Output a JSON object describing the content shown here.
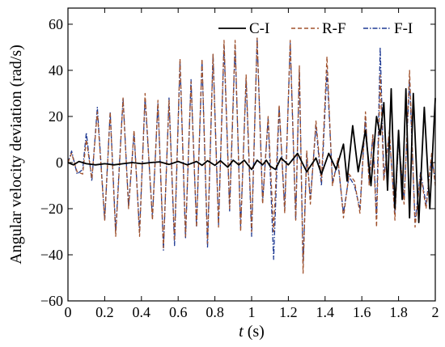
{
  "chart_data": {
    "type": "line",
    "xlabel_var": "t",
    "xlabel_unit": " (s)",
    "ylabel": "Angular velocity deviation (rad/s)",
    "xlim": [
      0,
      2
    ],
    "ylim": [
      -60,
      67
    ],
    "xticks": [
      0,
      0.2,
      0.4,
      0.6,
      0.8,
      1,
      1.2,
      1.4,
      1.6,
      1.8,
      2
    ],
    "xtick_labels": [
      "0",
      "0.2",
      "0.4",
      "0.6",
      "0.8",
      "1",
      "1.2",
      "1.4",
      "1.6",
      "1.8",
      "2"
    ],
    "yticks": [
      -60,
      -40,
      -20,
      0,
      20,
      40,
      60
    ],
    "ytick_labels": [
      "−60",
      "−40",
      "−20",
      "0",
      "20",
      "40",
      "60"
    ],
    "grid": false,
    "legend_position": "top-right",
    "series": [
      {
        "name": "C-I",
        "color": "#000000",
        "dash": "none",
        "points": [
          [
            0,
            0
          ],
          [
            0.03,
            -1
          ],
          [
            0.06,
            0.5
          ],
          [
            0.1,
            -0.5
          ],
          [
            0.15,
            -1
          ],
          [
            0.2,
            -0.5
          ],
          [
            0.25,
            -1
          ],
          [
            0.3,
            -0.5
          ],
          [
            0.35,
            0
          ],
          [
            0.4,
            -0.5
          ],
          [
            0.45,
            0
          ],
          [
            0.5,
            0.3
          ],
          [
            0.55,
            -0.8
          ],
          [
            0.6,
            0.5
          ],
          [
            0.65,
            -1
          ],
          [
            0.7,
            0.5
          ],
          [
            0.73,
            -1.2
          ],
          [
            0.76,
            0.8
          ],
          [
            0.8,
            -1.2
          ],
          [
            0.83,
            0.8
          ],
          [
            0.87,
            -2
          ],
          [
            0.9,
            1
          ],
          [
            0.93,
            -1
          ],
          [
            0.96,
            1
          ],
          [
            1.0,
            -3
          ],
          [
            1.03,
            1
          ],
          [
            1.06,
            -1
          ],
          [
            1.08,
            1
          ],
          [
            1.1,
            -1.5
          ],
          [
            1.13,
            -3
          ],
          [
            1.16,
            2
          ],
          [
            1.2,
            -1
          ],
          [
            1.25,
            4
          ],
          [
            1.3,
            -4
          ],
          [
            1.35,
            2
          ],
          [
            1.38,
            -5
          ],
          [
            1.42,
            4
          ],
          [
            1.46,
            -3
          ],
          [
            1.5,
            8
          ],
          [
            1.52,
            -8
          ],
          [
            1.55,
            16
          ],
          [
            1.58,
            -4
          ],
          [
            1.62,
            14
          ],
          [
            1.65,
            -10
          ],
          [
            1.68,
            20
          ],
          [
            1.7,
            12
          ],
          [
            1.72,
            26
          ],
          [
            1.74,
            -12
          ],
          [
            1.76,
            32
          ],
          [
            1.78,
            -20
          ],
          [
            1.8,
            14
          ],
          [
            1.82,
            -16
          ],
          [
            1.84,
            32
          ],
          [
            1.86,
            -24
          ],
          [
            1.88,
            30
          ],
          [
            1.91,
            -26
          ],
          [
            1.94,
            24
          ],
          [
            1.97,
            -20
          ],
          [
            2.0,
            28
          ]
        ]
      },
      {
        "name": "R-F",
        "color": "#a0522d",
        "dash": "5,3",
        "points": [
          [
            0,
            0
          ],
          [
            0.02,
            4
          ],
          [
            0.05,
            -4
          ],
          [
            0.08,
            -5
          ],
          [
            0.1,
            10
          ],
          [
            0.13,
            -7
          ],
          [
            0.16,
            22
          ],
          [
            0.2,
            -25
          ],
          [
            0.23,
            22
          ],
          [
            0.26,
            -32
          ],
          [
            0.3,
            28
          ],
          [
            0.33,
            -20
          ],
          [
            0.36,
            14
          ],
          [
            0.39,
            -32
          ],
          [
            0.42,
            30
          ],
          [
            0.46,
            -25
          ],
          [
            0.49,
            27
          ],
          [
            0.52,
            -37
          ],
          [
            0.55,
            27
          ],
          [
            0.58,
            -34
          ],
          [
            0.61,
            45
          ],
          [
            0.64,
            -32
          ],
          [
            0.67,
            35
          ],
          [
            0.7,
            -28
          ],
          [
            0.73,
            45
          ],
          [
            0.76,
            -35
          ],
          [
            0.79,
            47
          ],
          [
            0.82,
            -28
          ],
          [
            0.85,
            53
          ],
          [
            0.88,
            -20
          ],
          [
            0.91,
            53
          ],
          [
            0.94,
            -30
          ],
          [
            0.97,
            38
          ],
          [
            1.0,
            -30
          ],
          [
            1.03,
            54
          ],
          [
            1.06,
            -18
          ],
          [
            1.09,
            20
          ],
          [
            1.12,
            -30
          ],
          [
            1.15,
            25
          ],
          [
            1.18,
            -22
          ],
          [
            1.21,
            53
          ],
          [
            1.24,
            -25
          ],
          [
            1.26,
            42
          ],
          [
            1.28,
            -48
          ],
          [
            1.3,
            5
          ],
          [
            1.32,
            -18
          ],
          [
            1.35,
            18
          ],
          [
            1.38,
            -8
          ],
          [
            1.41,
            46
          ],
          [
            1.44,
            -10
          ],
          [
            1.47,
            2
          ],
          [
            1.5,
            -24
          ],
          [
            1.53,
            -5
          ],
          [
            1.56,
            -8
          ],
          [
            1.59,
            -22
          ],
          [
            1.62,
            22
          ],
          [
            1.64,
            -10
          ],
          [
            1.66,
            12
          ],
          [
            1.68,
            -28
          ],
          [
            1.7,
            38
          ],
          [
            1.72,
            -8
          ],
          [
            1.75,
            14
          ],
          [
            1.78,
            -25
          ],
          [
            1.8,
            12
          ],
          [
            1.83,
            -18
          ],
          [
            1.86,
            40
          ],
          [
            1.89,
            -28
          ],
          [
            1.92,
            -5
          ],
          [
            1.95,
            -20
          ],
          [
            1.98,
            4
          ],
          [
            2.0,
            -10
          ]
        ]
      },
      {
        "name": "F-I",
        "color": "#1f3a93",
        "dash": "6,2,1.5,2",
        "points": [
          [
            0,
            0
          ],
          [
            0.02,
            5
          ],
          [
            0.05,
            -5
          ],
          [
            0.08,
            -3
          ],
          [
            0.1,
            13
          ],
          [
            0.13,
            -8
          ],
          [
            0.16,
            24
          ],
          [
            0.2,
            -25
          ],
          [
            0.23,
            22
          ],
          [
            0.26,
            -30
          ],
          [
            0.3,
            28
          ],
          [
            0.33,
            -19
          ],
          [
            0.36,
            13
          ],
          [
            0.39,
            -30
          ],
          [
            0.42,
            28
          ],
          [
            0.46,
            -24
          ],
          [
            0.49,
            26
          ],
          [
            0.52,
            -38
          ],
          [
            0.55,
            28
          ],
          [
            0.58,
            -36
          ],
          [
            0.61,
            44
          ],
          [
            0.64,
            -33
          ],
          [
            0.67,
            36
          ],
          [
            0.7,
            -28
          ],
          [
            0.73,
            44
          ],
          [
            0.76,
            -37
          ],
          [
            0.79,
            47
          ],
          [
            0.82,
            -27
          ],
          [
            0.85,
            51
          ],
          [
            0.88,
            -21
          ],
          [
            0.91,
            51
          ],
          [
            0.94,
            -28
          ],
          [
            0.97,
            36
          ],
          [
            1.0,
            -32
          ],
          [
            1.03,
            54
          ],
          [
            1.06,
            -17
          ],
          [
            1.09,
            19
          ],
          [
            1.12,
            -42
          ],
          [
            1.15,
            24
          ],
          [
            1.18,
            -20
          ],
          [
            1.21,
            52
          ],
          [
            1.24,
            -25
          ],
          [
            1.26,
            40
          ],
          [
            1.28,
            -44
          ],
          [
            1.3,
            4
          ],
          [
            1.32,
            -16
          ],
          [
            1.35,
            16
          ],
          [
            1.38,
            -10
          ],
          [
            1.41,
            40
          ],
          [
            1.44,
            -8
          ],
          [
            1.47,
            0
          ],
          [
            1.5,
            -22
          ],
          [
            1.53,
            -6
          ],
          [
            1.56,
            -10
          ],
          [
            1.59,
            -20
          ],
          [
            1.62,
            20
          ],
          [
            1.64,
            -8
          ],
          [
            1.66,
            12
          ],
          [
            1.68,
            -24
          ],
          [
            1.7,
            50
          ],
          [
            1.72,
            -6
          ],
          [
            1.75,
            12
          ],
          [
            1.78,
            -22
          ],
          [
            1.8,
            10
          ],
          [
            1.83,
            -16
          ],
          [
            1.86,
            36
          ],
          [
            1.89,
            -26
          ],
          [
            1.92,
            -4
          ],
          [
            1.95,
            -18
          ],
          [
            1.98,
            2
          ],
          [
            2.0,
            -8
          ]
        ]
      }
    ]
  }
}
